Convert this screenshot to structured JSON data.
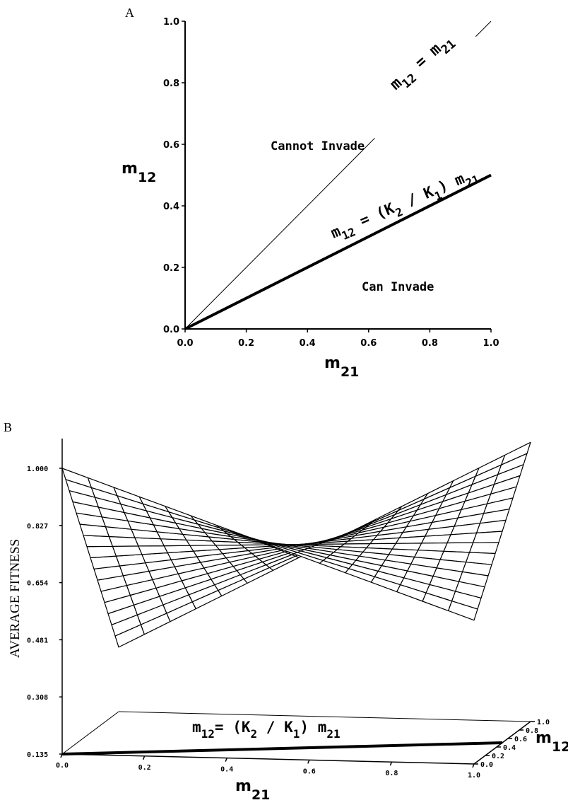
{
  "colors": {
    "ink": "#000000",
    "background": "#ffffff"
  },
  "chart_data": [
    {
      "panel_label": "A",
      "type": "line",
      "xlabel": "m",
      "xlabel_sub": "21",
      "ylabel": "m",
      "ylabel_sub": "12",
      "xlim": [
        0.0,
        1.0
      ],
      "ylim": [
        0.0,
        1.0
      ],
      "xticks": [
        "0.0",
        "0.2",
        "0.4",
        "0.6",
        "0.8",
        "1.0"
      ],
      "yticks": [
        "0.0",
        "0.2",
        "0.4",
        "0.6",
        "0.8",
        "1.0"
      ],
      "grid": false,
      "series": [
        {
          "name": "m12 = m21",
          "x": [
            0.0,
            1.0
          ],
          "y": [
            0.0,
            1.0
          ]
        },
        {
          "name": "m12 = (K2 / K1) m21",
          "x": [
            0.0,
            1.0
          ],
          "y": [
            0.0,
            0.5
          ]
        }
      ],
      "annotations": {
        "line1": {
          "m": "m",
          "s1": "12",
          "eq": " = ",
          "m2": "m",
          "s2": "21"
        },
        "line2": {
          "m": "m",
          "s1": "12",
          "eq": " = (",
          "K": "K",
          "ks2": "2",
          "div": " / ",
          "K1": "K",
          "ks1": "1",
          "close": ") ",
          "m2": "m",
          "s2": "21"
        },
        "region_above": "Cannot Invade",
        "region_below": "Can Invade"
      }
    },
    {
      "panel_label": "B",
      "type": "surface",
      "zlabel": "AVERAGE FITNESS",
      "xlabel": "m",
      "xlabel_sub": "21",
      "ylabel": "m",
      "ylabel_sub": "12",
      "zticks": [
        "1.000",
        "0.827",
        "0.654",
        "0.481",
        "0.308",
        "0.135"
      ],
      "xticks": [
        "0.0",
        "0.2",
        "0.4",
        "0.6",
        "0.8",
        "1.0"
      ],
      "yticks": [
        "0.0",
        "0.2",
        "0.4",
        "0.6",
        "0.8",
        "1.0"
      ],
      "zlim": [
        0.135,
        1.0
      ],
      "grid_points": 16,
      "surface": {
        "fitness_at_corners": {
          "m21_0_m12_0": 1.0,
          "m21_1_m12_0": 0.57,
          "m21_0_m12_1": 0.33,
          "m21_1_m12_1": 0.98
        }
      },
      "floor_line": {
        "name": "m12 = (K2 / K1) m21",
        "m21": [
          0.0,
          1.0
        ],
        "m12": [
          0.0,
          0.5
        ]
      },
      "annotation": {
        "m": "m",
        "s1": "12",
        "eq": "= (",
        "K": "K",
        "ks2": "2",
        "div": " / ",
        "K1": "K",
        "ks1": "1",
        "close": ") ",
        "m2": "m",
        "s2": "21"
      }
    }
  ]
}
